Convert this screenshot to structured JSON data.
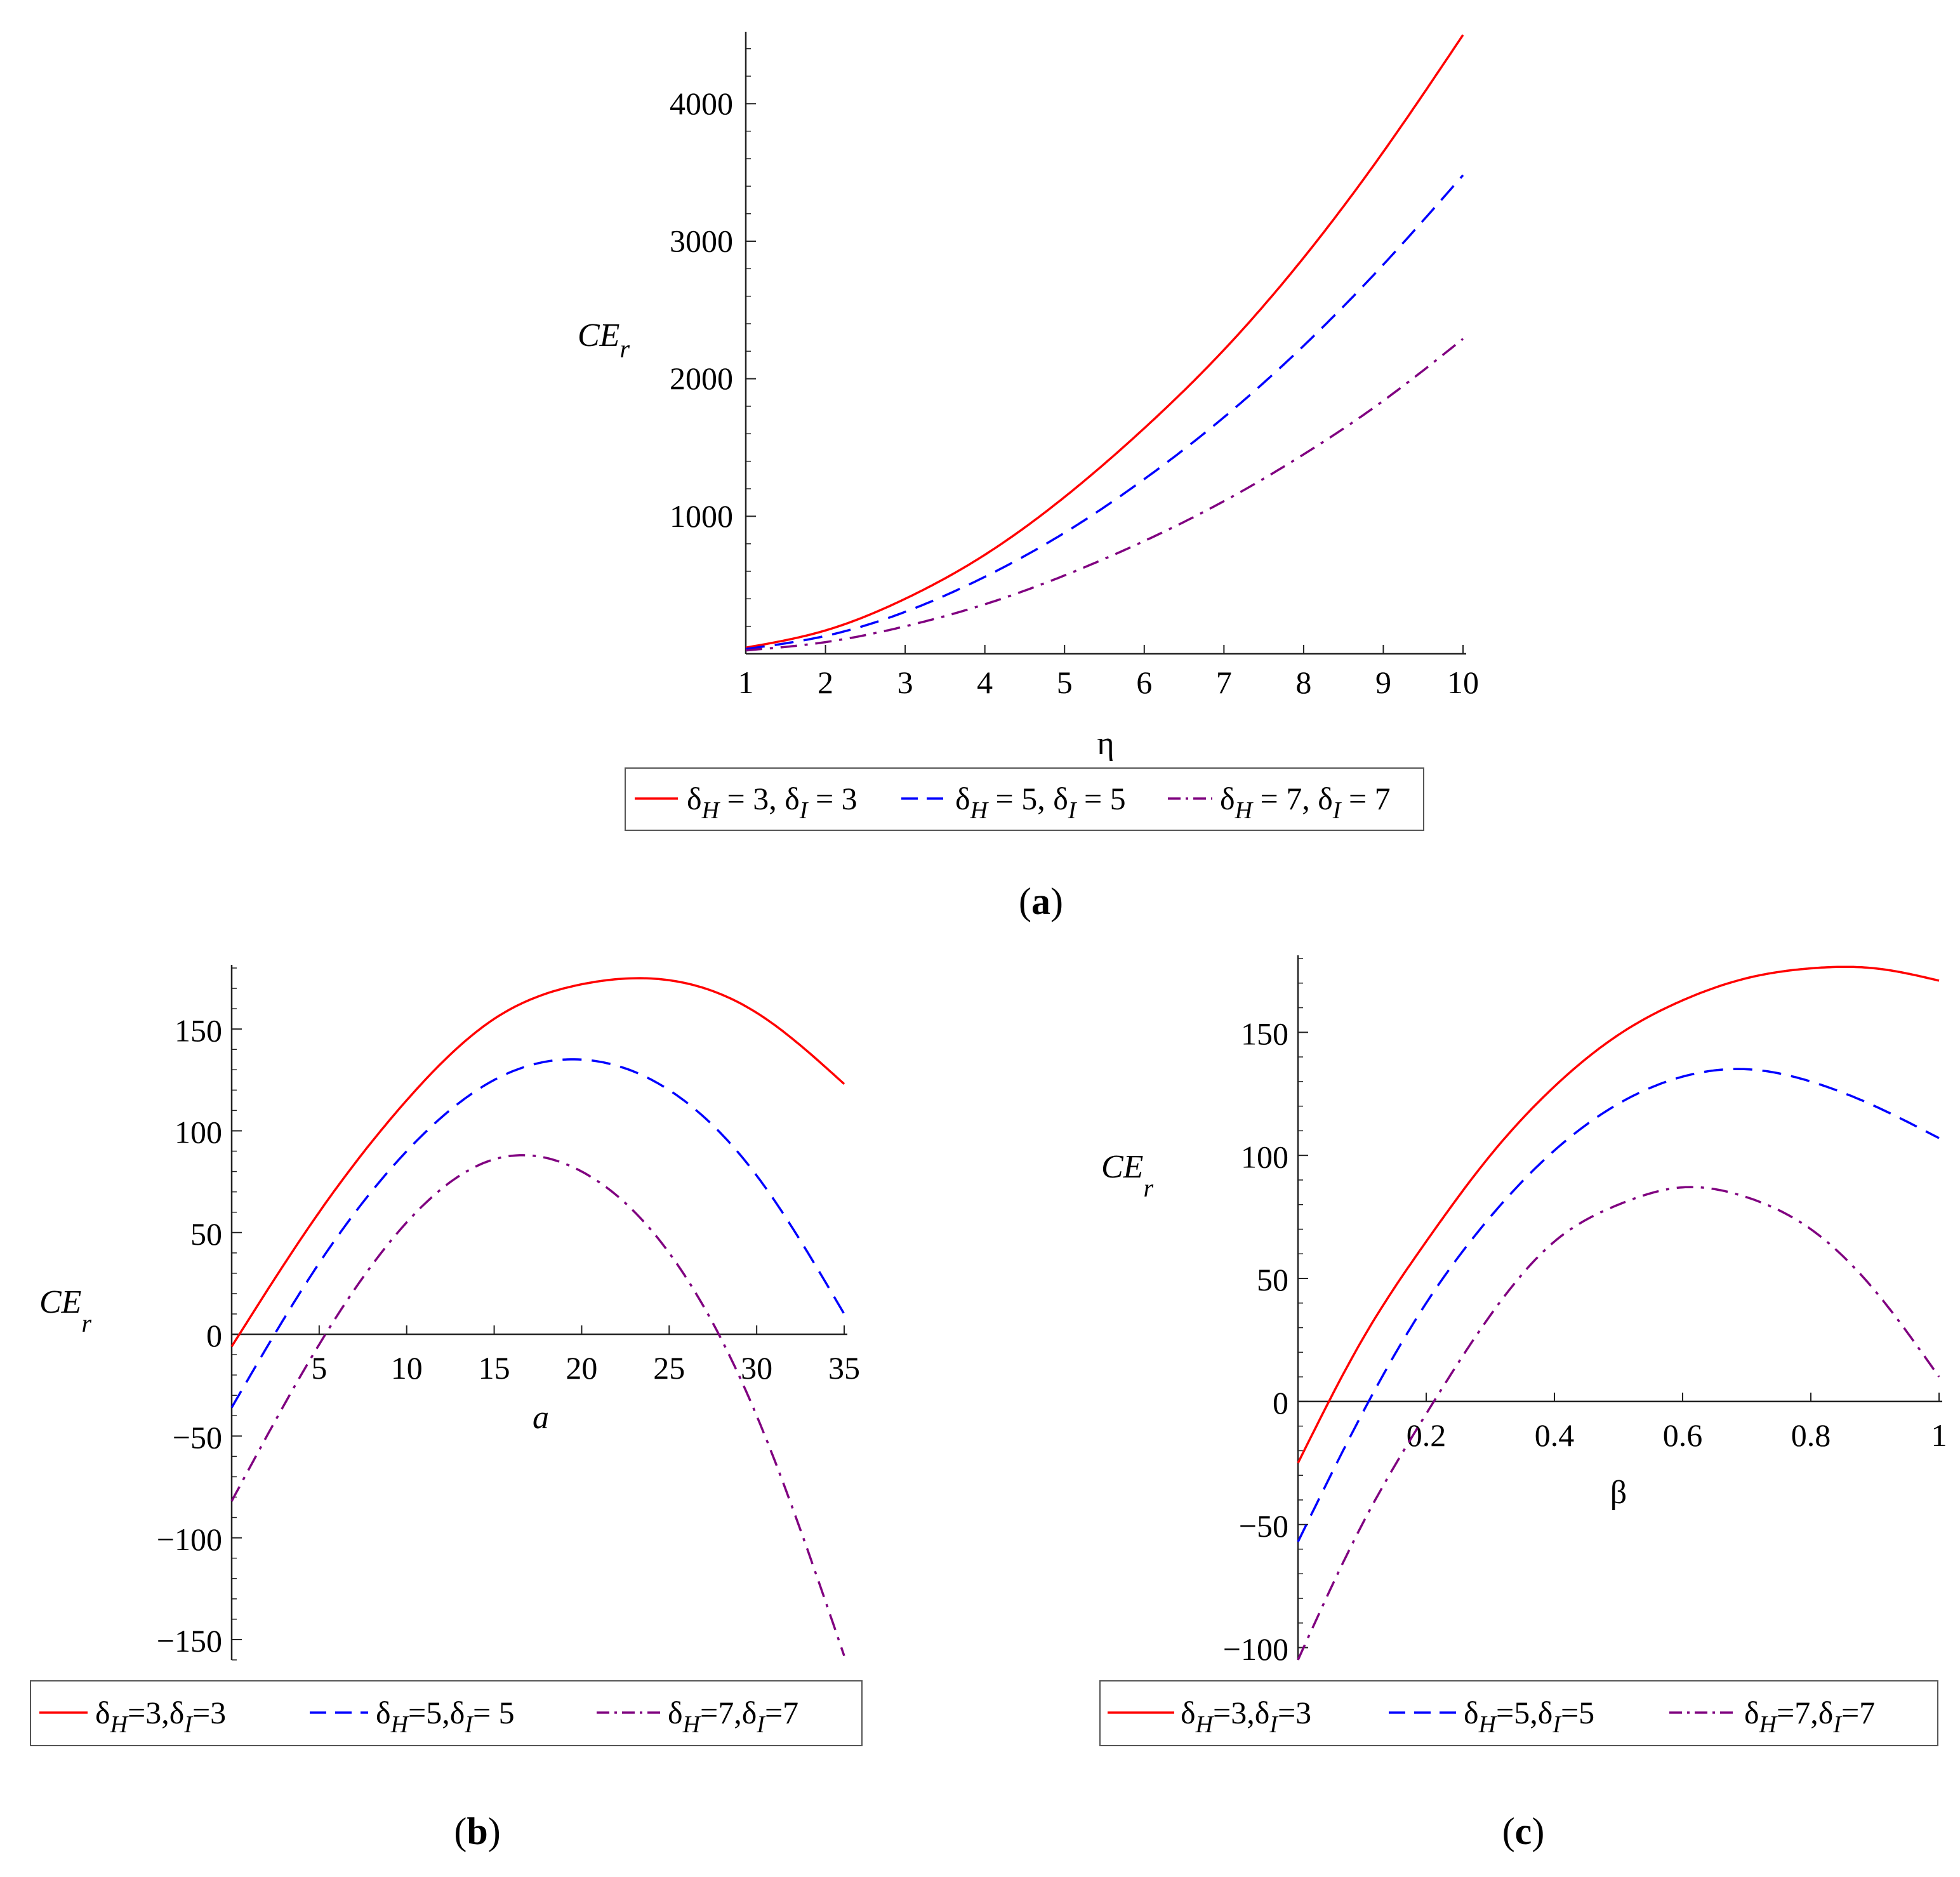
{
  "chart_data": [
    {
      "id": "a",
      "type": "line",
      "caption": {
        "open": "(",
        "letter": "a",
        "close": ")"
      },
      "xlabel": "η",
      "ylabel": {
        "base": "CE",
        "sub": "r"
      },
      "xlim": [
        1,
        10
      ],
      "ylim": [
        0,
        4500
      ],
      "x_axis_at": 0,
      "xticks": [
        1,
        2,
        3,
        4,
        5,
        6,
        7,
        8,
        9,
        10
      ],
      "yticks": [
        1000,
        2000,
        3000,
        4000
      ],
      "minor_y_step": 200,
      "x": [
        1,
        2,
        3,
        4,
        5,
        6,
        7,
        8,
        9,
        10
      ],
      "series": [
        {
          "name": "δH = 3, δI = 3",
          "legend": {
            "d1": "δ",
            "s1": "H",
            "eq1": " = 3, ",
            "d2": "δ",
            "s2": "I",
            "eq2": " = 3"
          },
          "color": "#ff0000",
          "dash": "solid",
          "values": [
            45,
            170,
            400,
            720,
            1140,
            1640,
            2210,
            2880,
            3650,
            4500
          ]
        },
        {
          "name": "δH = 5, δI = 5",
          "legend": {
            "d1": "δ",
            "s1": "H",
            "eq1": " = 5, ",
            "d2": "δ",
            "s2": "I",
            "eq2": " = 5"
          },
          "color": "#0000ff",
          "dash": "dashed",
          "values": [
            35,
            130,
            305,
            560,
            880,
            1270,
            1720,
            2240,
            2830,
            3480
          ]
        },
        {
          "name": "δH = 7, δI = 7",
          "legend": {
            "d1": "δ",
            "s1": "H",
            "eq1": " = 7, ",
            "d2": "δ",
            "s2": "I",
            "eq2": " = 7"
          },
          "color": "#800080",
          "dash": "dashdot",
          "values": [
            25,
            85,
            200,
            360,
            570,
            820,
            1110,
            1450,
            1840,
            2290
          ]
        }
      ]
    },
    {
      "id": "b",
      "type": "line",
      "caption": {
        "open": "(",
        "letter": "b",
        "close": ")"
      },
      "xlabel": "a",
      "ylabel": {
        "base": "CE",
        "sub": "r"
      },
      "xlim": [
        0,
        35
      ],
      "ylim": [
        -160,
        180
      ],
      "x_axis_at": 0,
      "xticks": [
        5,
        10,
        15,
        20,
        25,
        30,
        35
      ],
      "yticks": [
        -150,
        -100,
        -50,
        0,
        50,
        100,
        150
      ],
      "minor_y_step": 10,
      "x": [
        0,
        5,
        10,
        15,
        20,
        25,
        30,
        35
      ],
      "series": [
        {
          "name": "δH=3,δI=3",
          "legend": {
            "d1": "δ",
            "s1": "H",
            "eq1": "=3,",
            "d2": "δ",
            "s2": "I",
            "eq2": "=3"
          },
          "color": "#ff0000",
          "dash": "solid",
          "values": [
            -6,
            60,
            115,
            155,
            172,
            174,
            158,
            123
          ]
        },
        {
          "name": "δH=5,δI=5",
          "legend": {
            "d1": "δ",
            "s1": "H",
            "eq1": "=5,",
            "d2": "δ",
            "s2": "I",
            "eq2": "= 5"
          },
          "color": "#0000ff",
          "dash": "dashed",
          "values": [
            -36,
            35,
            90,
            125,
            135,
            120,
            78,
            10
          ]
        },
        {
          "name": "δH=7,δI=7",
          "legend": {
            "d1": "δ",
            "s1": "H",
            "eq1": "=7,",
            "d2": "δ",
            "s2": "I",
            "eq2": "=7"
          },
          "color": "#800080",
          "dash": "dashdot",
          "values": [
            -82,
            -5,
            55,
            86,
            80,
            40,
            -40,
            -158
          ]
        }
      ]
    },
    {
      "id": "c",
      "type": "line",
      "caption": {
        "open": "(",
        "letter": "c",
        "close": ")"
      },
      "xlabel": "β",
      "ylabel": {
        "base": "CE",
        "sub": "r"
      },
      "xlim": [
        0,
        1
      ],
      "ylim": [
        -105,
        180
      ],
      "x_axis_at": 0,
      "xticks": [
        0.2,
        0.4,
        0.6,
        0.8,
        1
      ],
      "xticklabels": [
        "0.2",
        "0.4",
        "0.6",
        "0.8",
        "1"
      ],
      "yticks": [
        -100,
        -50,
        0,
        50,
        100,
        150
      ],
      "minor_y_step": 10,
      "x": [
        0,
        0.1,
        0.2,
        0.3,
        0.4,
        0.5,
        0.6,
        0.7,
        0.8,
        0.9,
        1
      ],
      "series": [
        {
          "name": "δH=3,δI=3",
          "legend": {
            "d1": "δ",
            "s1": "H",
            "eq1": "=3,",
            "d2": "δ",
            "s2": "I",
            "eq2": "=3"
          },
          "color": "#ff0000",
          "dash": "solid",
          "values": [
            -25,
            25,
            65,
            100,
            128,
            149,
            163,
            172,
            176,
            176,
            171
          ]
        },
        {
          "name": "δH=5,δI=5",
          "legend": {
            "d1": "δ",
            "s1": "H",
            "eq1": "=5,",
            "d2": "δ",
            "s2": "I",
            "eq2": "=5"
          },
          "color": "#0000ff",
          "dash": "dashed",
          "values": [
            -57,
            -5,
            40,
            75,
            102,
            121,
            132,
            135,
            130,
            120,
            107
          ]
        },
        {
          "name": "δH=7,δI=7",
          "legend": {
            "d1": "δ",
            "s1": "H",
            "eq1": "=7,",
            "d2": "δ",
            "s2": "I",
            "eq2": "=7"
          },
          "color": "#800080",
          "dash": "dashdot",
          "values": [
            -105,
            -50,
            -5,
            35,
            65,
            80,
            87,
            83,
            70,
            45,
            10
          ]
        }
      ]
    }
  ]
}
